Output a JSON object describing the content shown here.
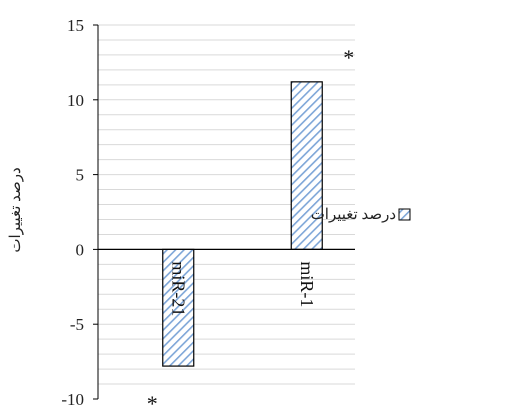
{
  "chart_data": {
    "type": "bar",
    "categories": [
      "miR-21",
      "miR-1"
    ],
    "series": [
      {
        "name": "درصد تغییرات",
        "values": [
          -7.8,
          11.2
        ]
      }
    ],
    "ylabel": "درصد تغییرات",
    "ylim": [
      -10,
      15
    ],
    "yticks": [
      -10,
      -5,
      0,
      5,
      10,
      15
    ],
    "grid": true,
    "legend_position": "right",
    "annotations": [
      "*",
      "*"
    ],
    "bar_fill": "hatched light blue",
    "colors": {
      "bar_hatch": "#7ea6d8",
      "bar_edge": "#000000",
      "grid": "#d9d9d9",
      "axis": "#000000"
    }
  }
}
